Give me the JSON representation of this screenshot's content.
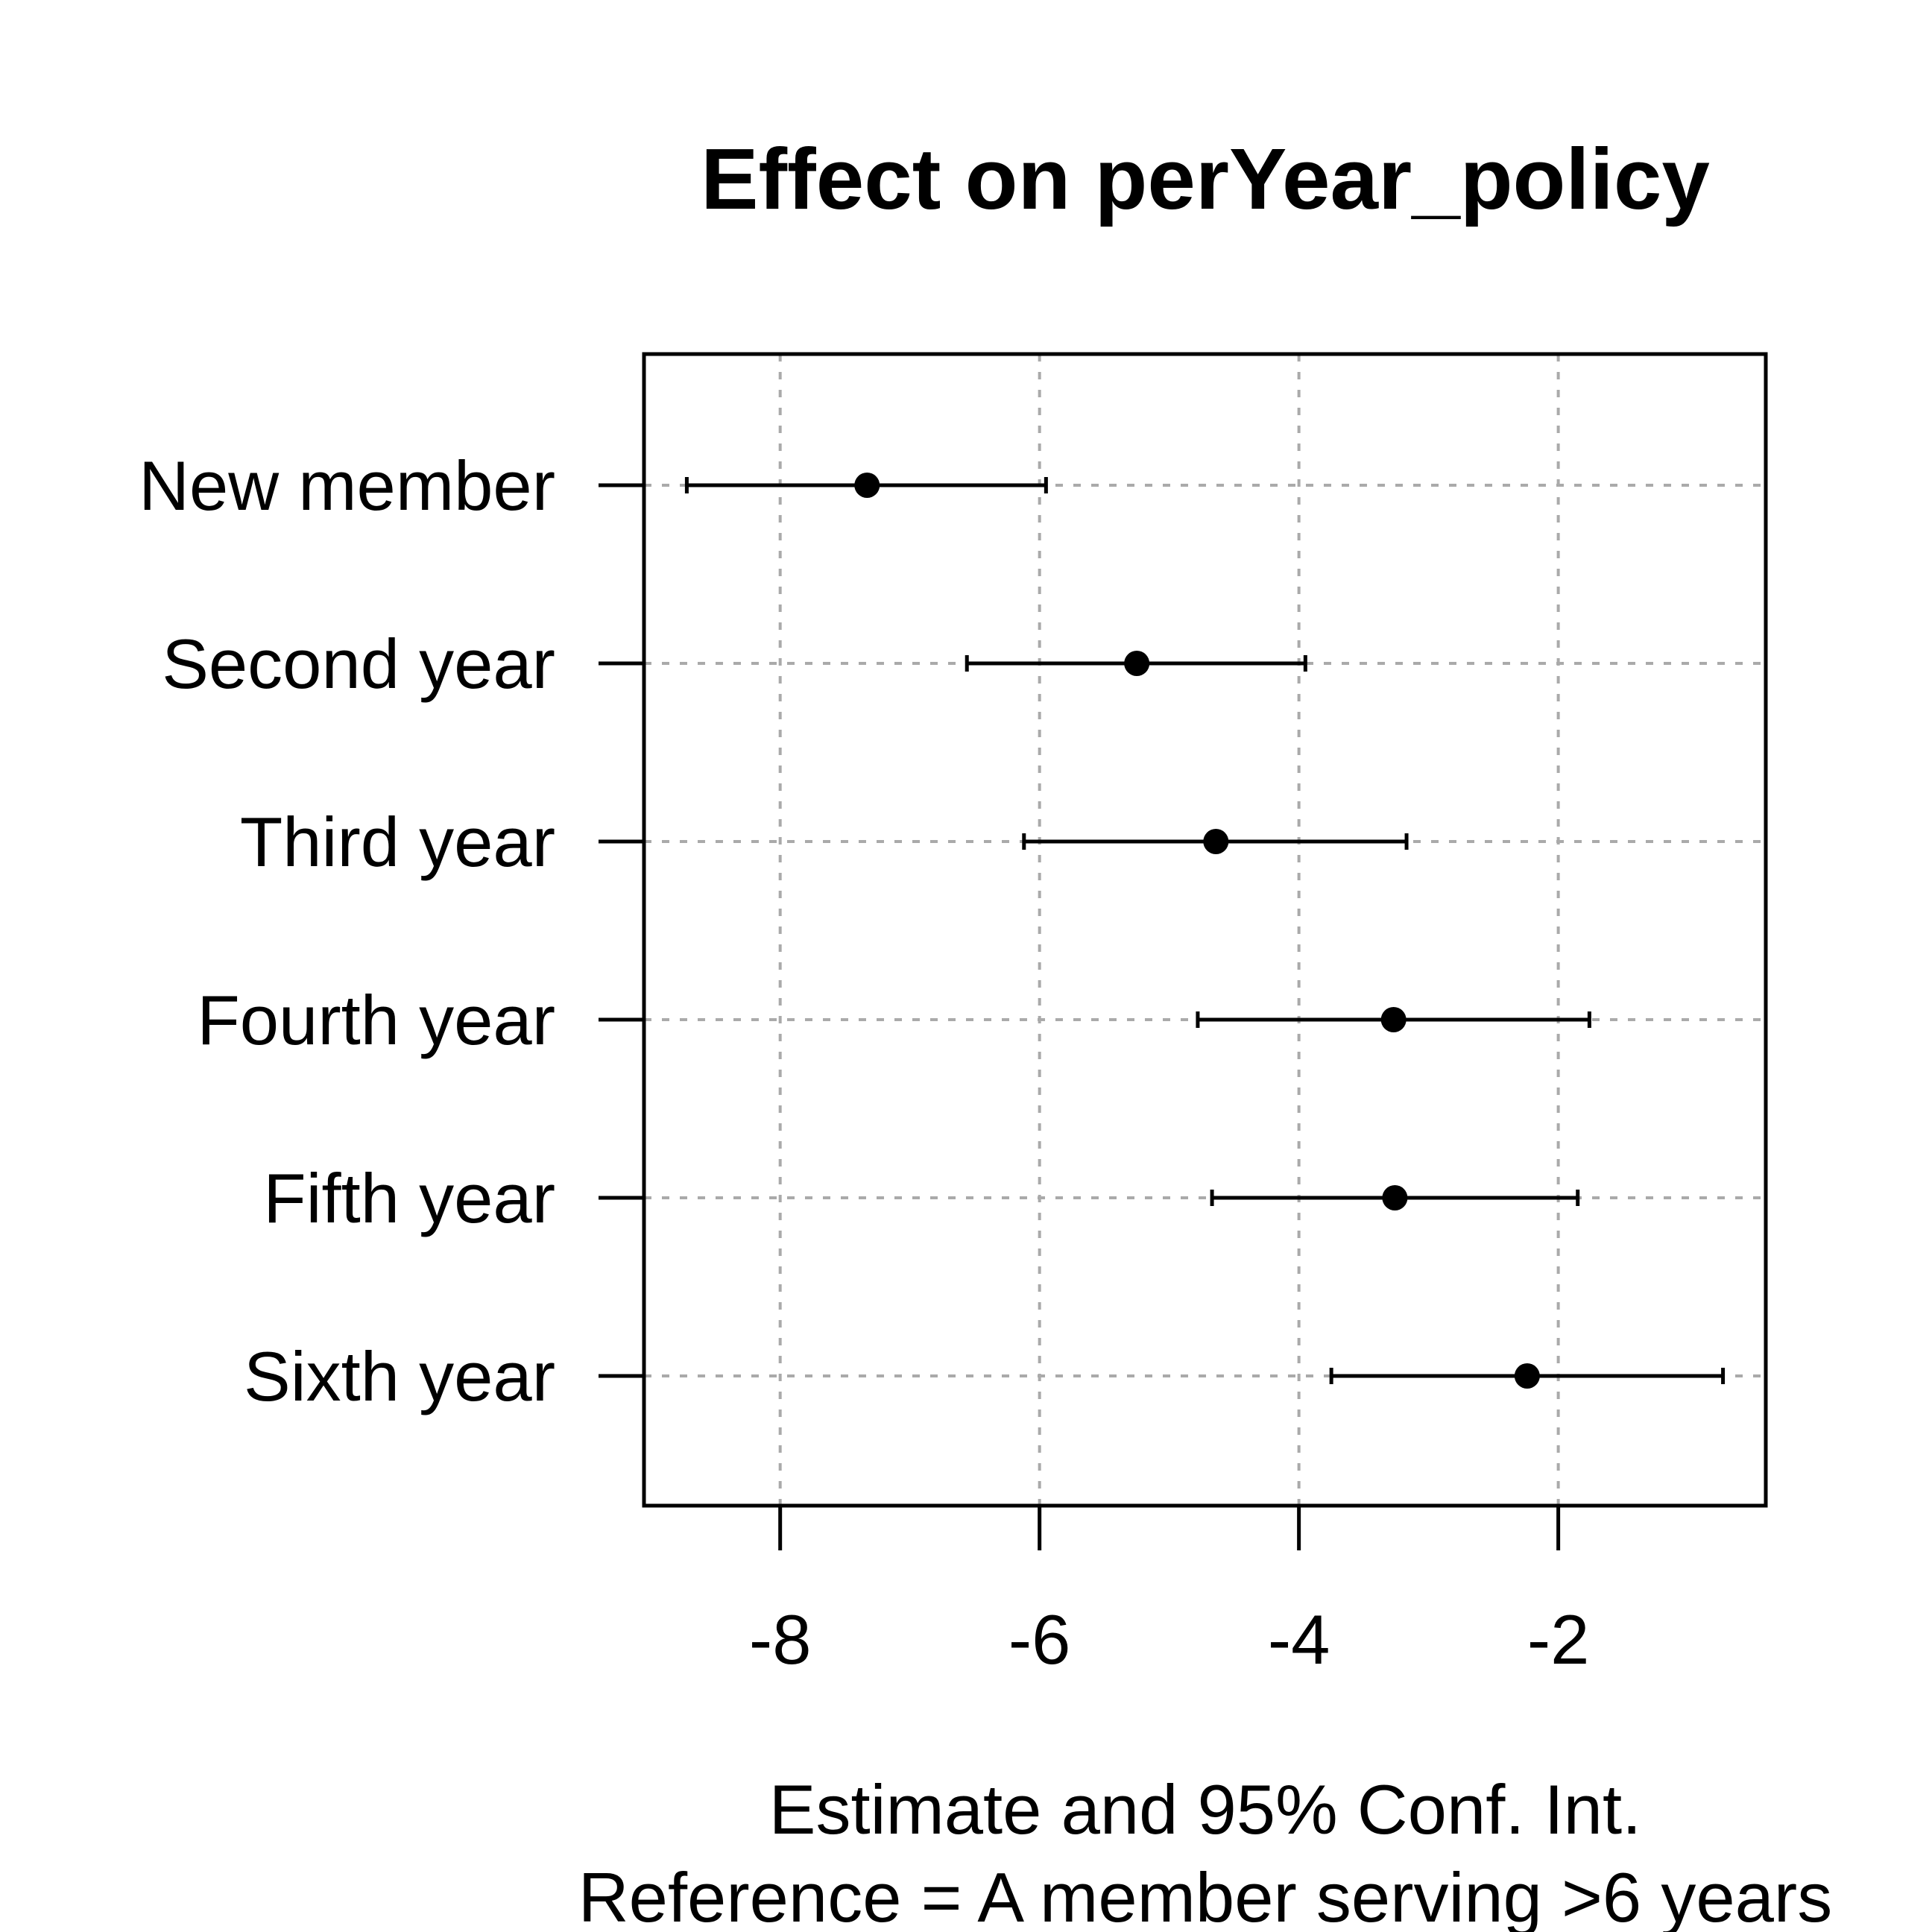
{
  "chart_data": {
    "type": "scatter",
    "title": "Effect on perYear_policy",
    "xlabel": "Estimate and 95% Conf. Int.",
    "xlabel2": "Reference = A member serving >6 years",
    "ylabel": "",
    "xlim": [
      -9.05,
      -0.4
    ],
    "xticks": [
      -8,
      -6,
      -4,
      -2
    ],
    "xtick_labels": [
      "-8",
      "-6",
      "-4",
      "-2"
    ],
    "grid": true,
    "categories": [
      "New member",
      "Second year",
      "Third year",
      "Fourth year",
      "Fifth year",
      "Sixth year"
    ],
    "estimates": [
      -7.33,
      -5.25,
      -4.64,
      -3.27,
      -3.26,
      -2.24
    ],
    "lower": [
      -8.72,
      -6.56,
      -6.12,
      -4.78,
      -4.67,
      -3.75
    ],
    "upper": [
      -5.95,
      -3.95,
      -3.17,
      -1.76,
      -1.85,
      -0.73
    ],
    "colors": {
      "point": "#000000",
      "grid": "#aaaaaa",
      "axis": "#000000"
    }
  }
}
